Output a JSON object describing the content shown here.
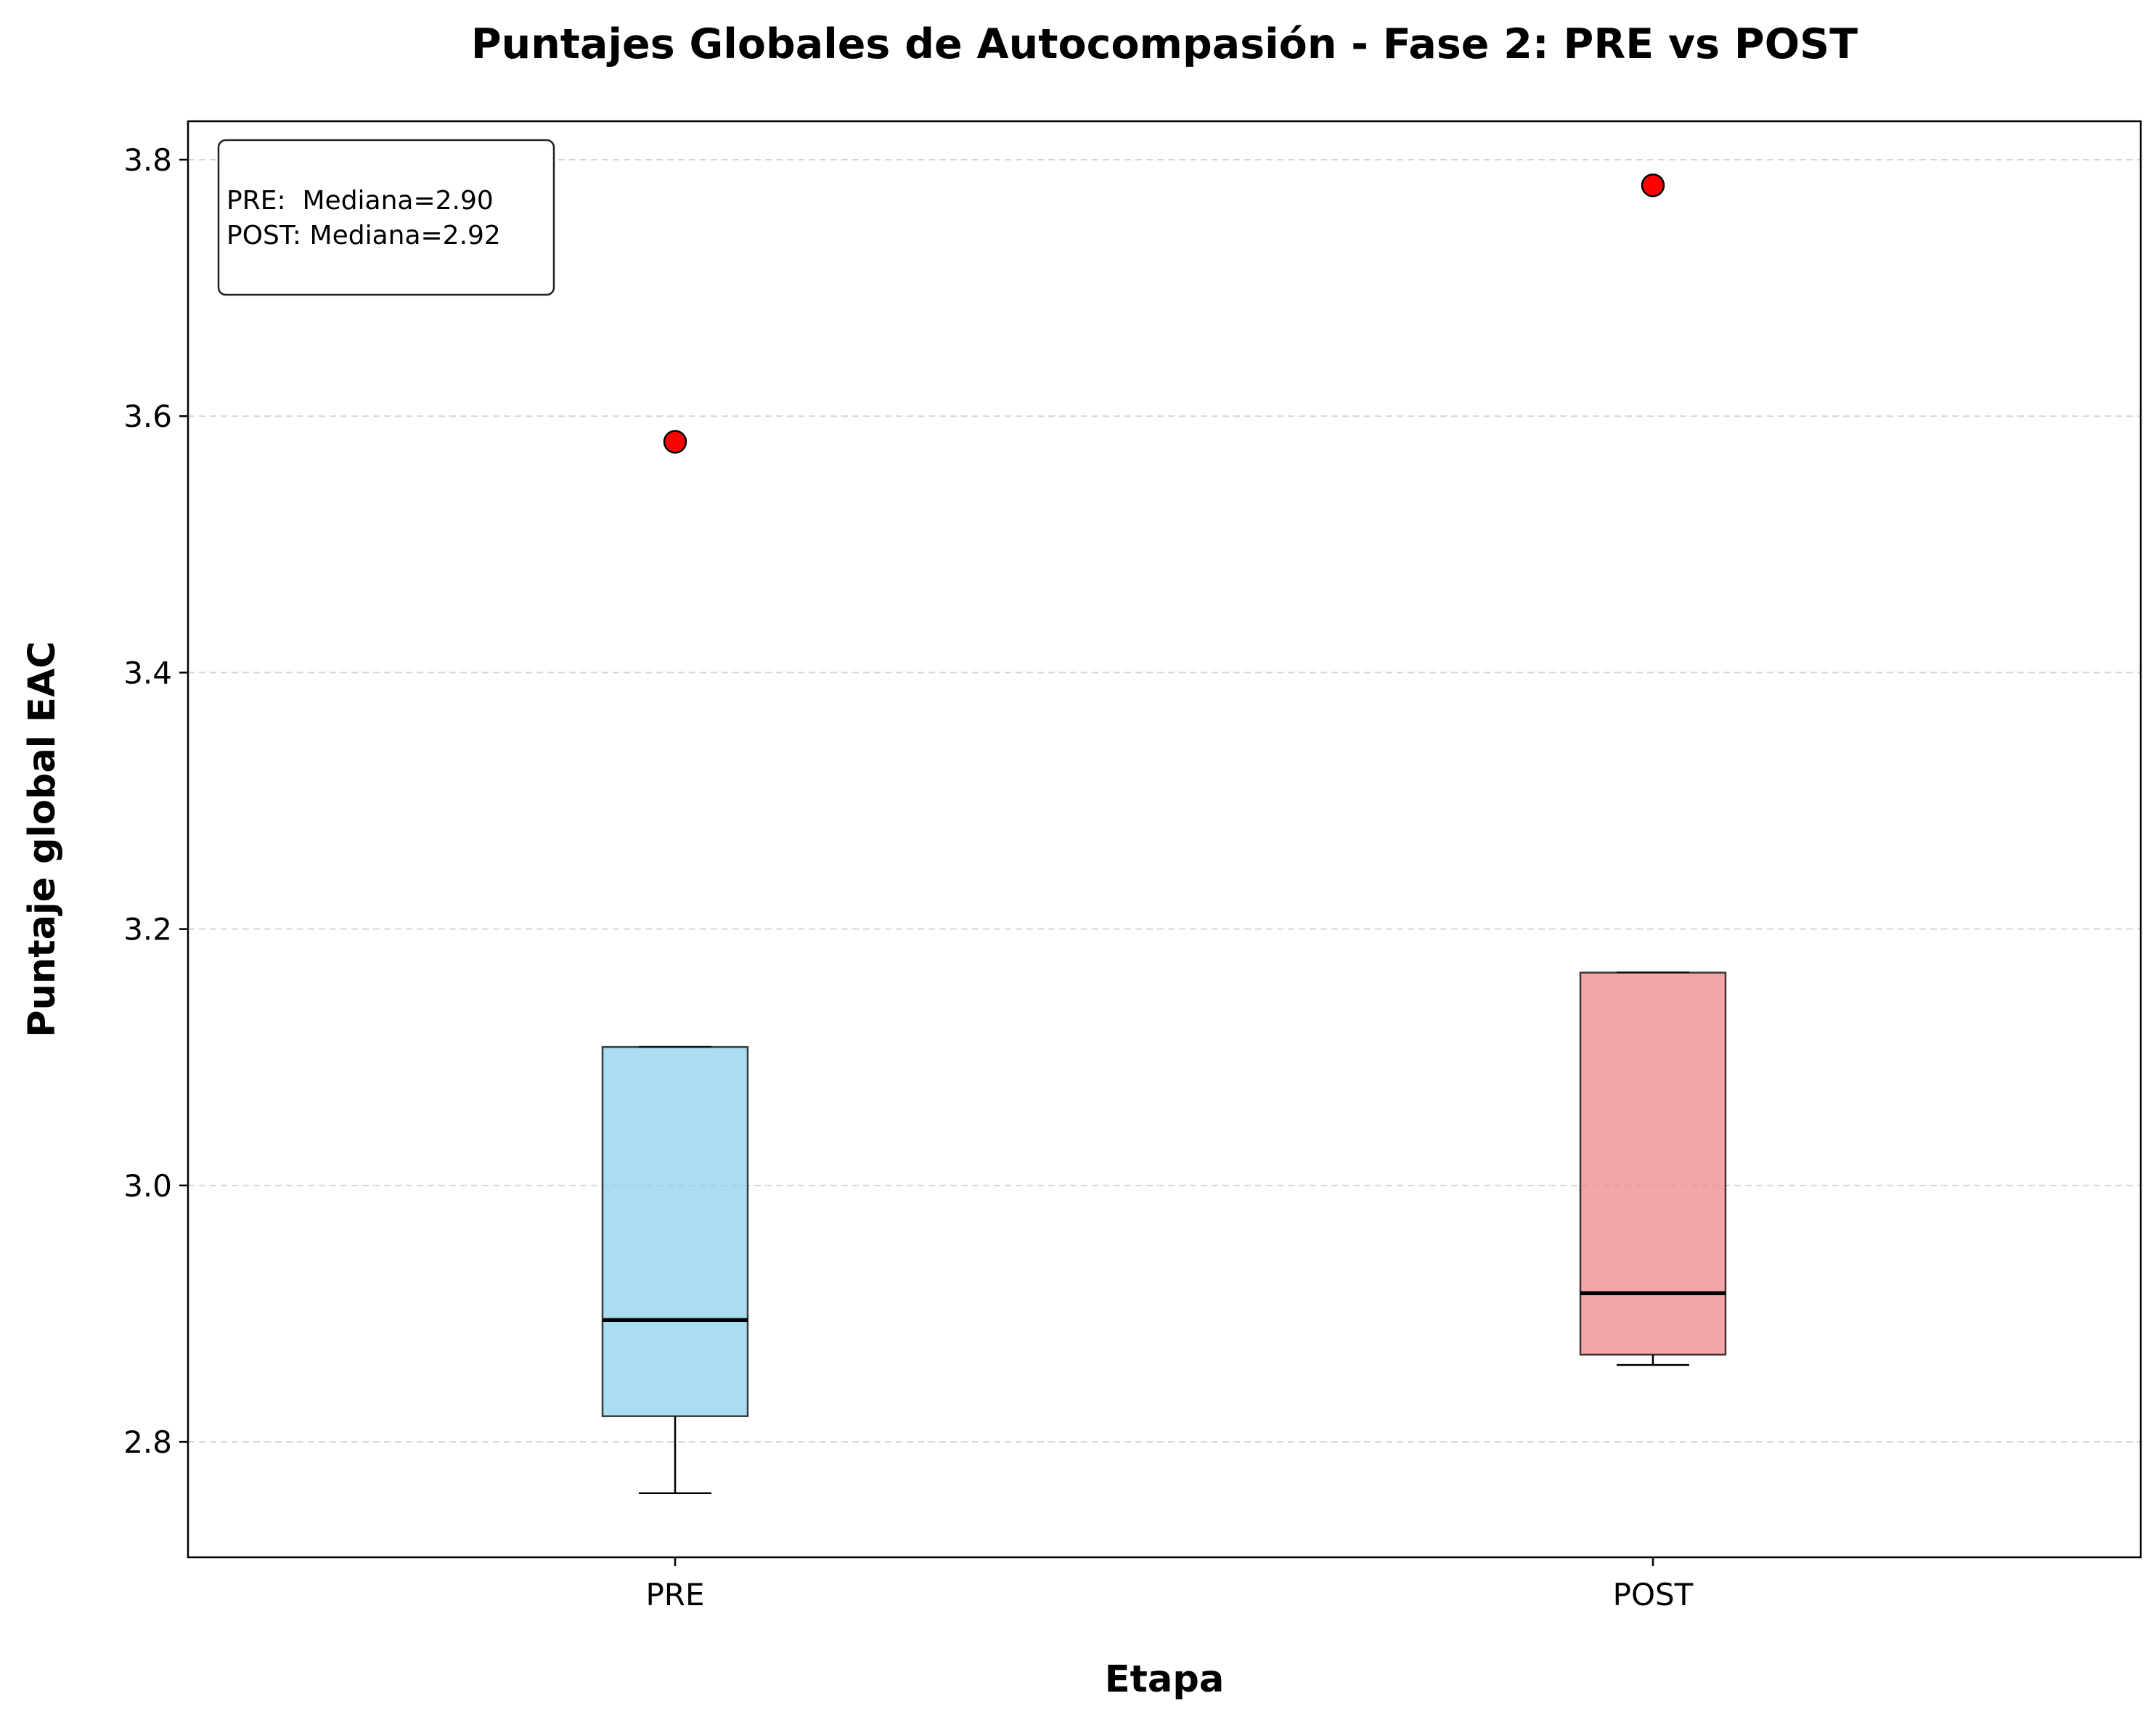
{
  "chart_data": {
    "type": "box",
    "title": "Puntajes Globales de Autocompasión - Fase 2: PRE vs POST",
    "xlabel": "Etapa",
    "ylabel": "Puntaje global EAC",
    "ylim": [
      2.71,
      3.83
    ],
    "yticks": [
      "2.8",
      "3.0",
      "3.2",
      "3.4",
      "3.6",
      "3.8"
    ],
    "grid": "horizontal, dashed",
    "categories": [
      "PRE",
      "POST"
    ],
    "series": [
      {
        "name": "PRE",
        "color": "#87ceeb",
        "whisker_low": 2.76,
        "q1": 2.82,
        "median": 2.895,
        "q3": 3.108,
        "whisker_high": 3.108,
        "outliers": [
          3.58
        ]
      },
      {
        "name": "POST",
        "color": "#f08080",
        "whisker_low": 2.86,
        "q1": 2.868,
        "median": 2.916,
        "q3": 3.166,
        "whisker_high": 3.166,
        "outliers": [
          3.78
        ]
      }
    ],
    "outlier_color": "#ff0000",
    "annotation": {
      "placement": "top-left",
      "lines": [
        "PRE:  Mediana=2.90",
        "POST: Mediana=2.92"
      ]
    }
  }
}
